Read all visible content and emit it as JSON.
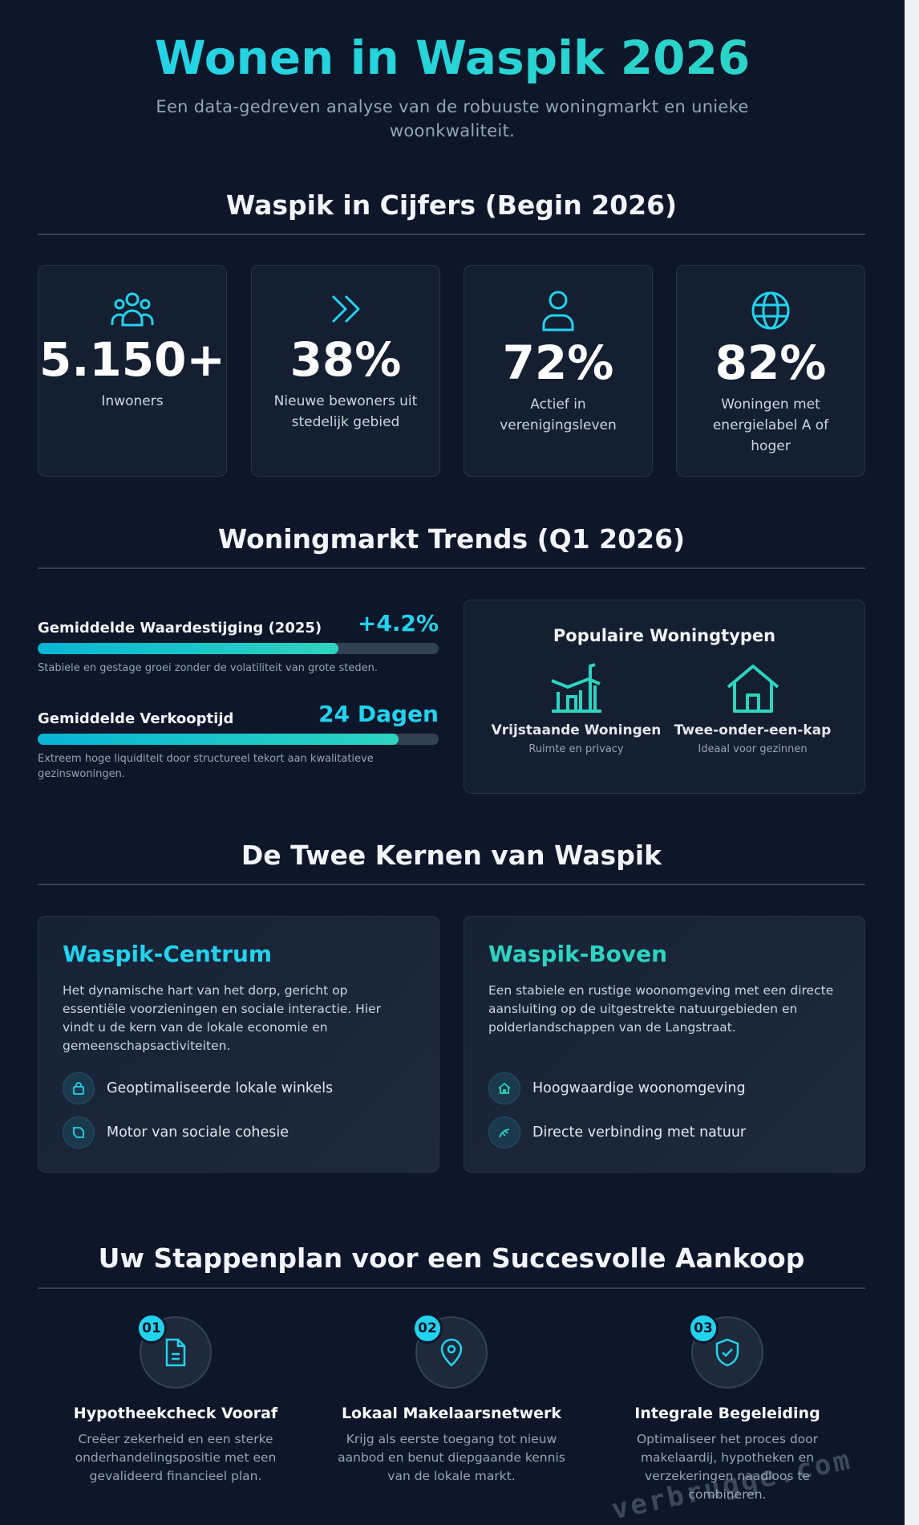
{
  "header": {
    "title": "Wonen in Waspik 2026",
    "subtitle": "Een data-gedreven analyse van de robuuste woningmarkt en unieke woonkwaliteit."
  },
  "stats": {
    "heading": "Waspik in Cijfers (Begin 2026)",
    "items": [
      {
        "value": "5.150+",
        "label": "Inwoners"
      },
      {
        "value": "38%",
        "label": "Nieuwe bewoners uit stedelijk gebied"
      },
      {
        "value": "72%",
        "label": "Actief in verenigingsleven"
      },
      {
        "value": "82%",
        "label": "Woningen met energielabel A of hoger"
      }
    ]
  },
  "trends": {
    "heading": "Woningmarkt Trends (Q1 2026)",
    "metrics": [
      {
        "label": "Gemiddelde Waardestijging (2025)",
        "value": "+4.2%",
        "progress": 75,
        "note": "Stabiele en gestage groei zonder de volatiliteit van grote steden."
      },
      {
        "label": "Gemiddelde Verkooptijd",
        "value": "24 Dagen",
        "progress": 90,
        "note": "Extreem hoge liquiditeit door structureel tekort aan kwalitatieve gezinswoningen."
      }
    ],
    "popular": {
      "title": "Populaire Woningtypen",
      "types": [
        {
          "name": "Vrijstaande Woningen",
          "note": "Ruimte en privacy"
        },
        {
          "name": "Twee-onder-een-kap",
          "note": "Ideaal voor gezinnen"
        }
      ]
    }
  },
  "cores": {
    "heading": "De Twee Kernen van Waspik",
    "items": [
      {
        "name": "Waspik-Centrum",
        "text": "Het dynamische hart van het dorp, gericht op essentiële voorzieningen en sociale interactie. Hier vindt u de kern van de lokale economie en gemeenschapsactiviteiten.",
        "features": [
          "Geoptimaliseerde lokale winkels",
          "Motor van sociale cohesie"
        ]
      },
      {
        "name": "Waspik-Boven",
        "text": "Een stabiele en rustige woonomgeving met een directe aansluiting op de uitgestrekte natuurgebieden en polderlandschappen van de Langstraat.",
        "features": [
          "Hoogwaardige woonomgeving",
          "Directe verbinding met natuur"
        ]
      }
    ]
  },
  "steps": {
    "heading": "Uw Stappenplan voor een Succesvolle Aankoop",
    "items": [
      {
        "number": "01",
        "title": "Hypotheekcheck Vooraf",
        "text": "Creëer zekerheid en een sterke onderhandelingspositie met een gevalideerd financieel plan."
      },
      {
        "number": "02",
        "title": "Lokaal Makelaarsnetwerk",
        "text": "Krijg als eerste toegang tot nieuw aanbod en benut diepgaande kennis van de lokale markt."
      },
      {
        "number": "03",
        "title": "Integrale Begeleiding",
        "text": "Optimaliseer het proces door makelaardij, hypotheken en verzekeringen naadloos te combineren."
      }
    ]
  },
  "watermark": "verbrugge.com"
}
